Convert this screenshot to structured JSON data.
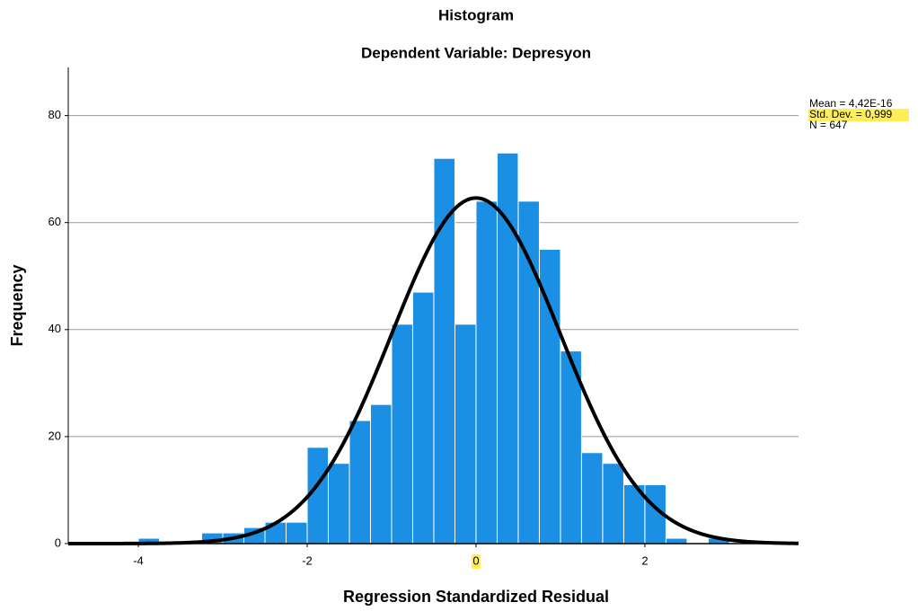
{
  "chart_data": {
    "type": "histogram",
    "title": "Histogram",
    "subtitle": "Dependent Variable: Depresyon",
    "x_label": "Regression Standardized Residual",
    "y_label": "Frequency",
    "bins": [
      -4,
      -3.75,
      -3.5,
      -3.25,
      -3,
      -2.75,
      -2.5,
      -2.25,
      -2,
      -1.75,
      -1.5,
      -1.25,
      -1,
      -0.75,
      -0.5,
      -0.25,
      0,
      0.25,
      0.5,
      0.75,
      1,
      1.25,
      1.5,
      1.75,
      2,
      2.25,
      2.5,
      2.75,
      3
    ],
    "values": [
      1,
      0,
      0,
      2,
      2,
      3,
      4,
      4,
      18,
      15,
      23,
      26,
      41,
      47,
      72,
      41,
      64,
      73,
      64,
      55,
      36,
      17,
      15,
      11,
      11,
      1,
      0,
      1
    ],
    "color": "#1a8fe3",
    "curve_color": "#000000",
    "xlim": [
      -4.83,
      3.82
    ],
    "ylim": [
      0,
      89
    ],
    "xticks": [
      -4,
      -2,
      0,
      2
    ],
    "yticks": [
      0,
      20,
      40,
      60,
      80
    ],
    "grid": true,
    "stats": {
      "mean": 4.42e-16,
      "std_dev": 0.999,
      "n": 647,
      "labels": [
        "Mean = 4,42E-16",
        "Std. Dev. = 0,999",
        "N = 647"
      ]
    }
  }
}
